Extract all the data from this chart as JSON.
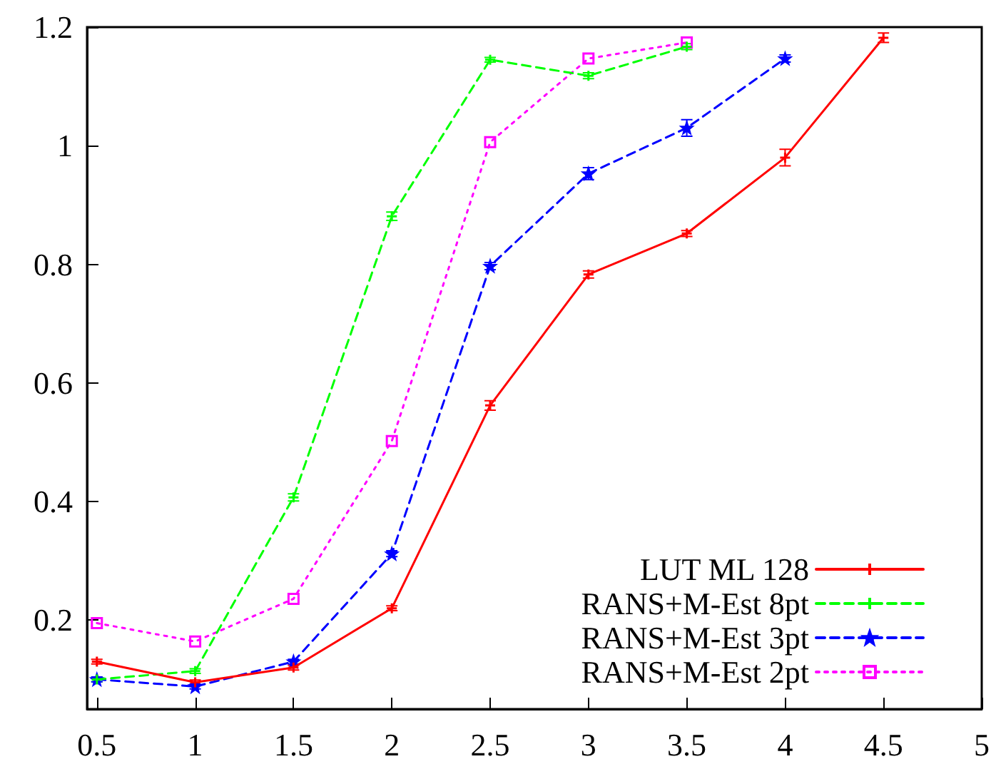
{
  "chart_data": {
    "type": "line",
    "x": [
      0.5,
      1,
      1.5,
      2,
      2.5,
      3,
      3.5,
      4,
      4.5
    ],
    "xlim": [
      0.45,
      5
    ],
    "xticks": [
      0.5,
      1,
      1.5,
      2,
      2.5,
      3,
      3.5,
      4,
      4.5,
      5
    ],
    "ylim": [
      0.05,
      1.2
    ],
    "yticks": [
      0.2,
      0.4,
      0.6,
      0.8,
      1,
      1.2
    ],
    "grid": false,
    "legend": "bottom right",
    "series": [
      {
        "name": "LUT ML 128",
        "color": "#ff0000",
        "marker": "cross",
        "line_style": "solid",
        "values": [
          0.13,
          0.095,
          0.12,
          0.22,
          0.562,
          0.783,
          0.852,
          0.98,
          1.182
        ],
        "errors": [
          0.004,
          0.004,
          0.004,
          0.004,
          0.008,
          0.006,
          0.005,
          0.014,
          0.008
        ]
      },
      {
        "name": "RANS+M-Est 8pt",
        "color": "#00ff00",
        "marker": "cross",
        "line_style": "dashed",
        "values": [
          0.1,
          0.114,
          0.407,
          0.881,
          1.145,
          1.118,
          1.167,
          null,
          null
        ],
        "errors": [
          0.004,
          0.004,
          0.006,
          0.007,
          0.004,
          0.005,
          0.005,
          null,
          null
        ]
      },
      {
        "name": "RANS+M-Est 3pt",
        "color": "#0000ff",
        "marker": "star",
        "line_style": "dashed",
        "values": [
          0.1,
          0.088,
          0.13,
          0.312,
          0.797,
          0.953,
          1.03,
          1.147,
          null
        ],
        "errors": [
          0.004,
          0.004,
          0.004,
          0.005,
          0.006,
          0.01,
          0.014,
          0.006,
          null
        ]
      },
      {
        "name": "RANS+M-Est 2pt",
        "color": "#ff00ff",
        "marker": "square",
        "line_style": "dotted",
        "values": [
          0.195,
          0.164,
          0.236,
          0.502,
          1.006,
          1.147,
          1.174,
          null,
          null
        ]
      }
    ]
  }
}
